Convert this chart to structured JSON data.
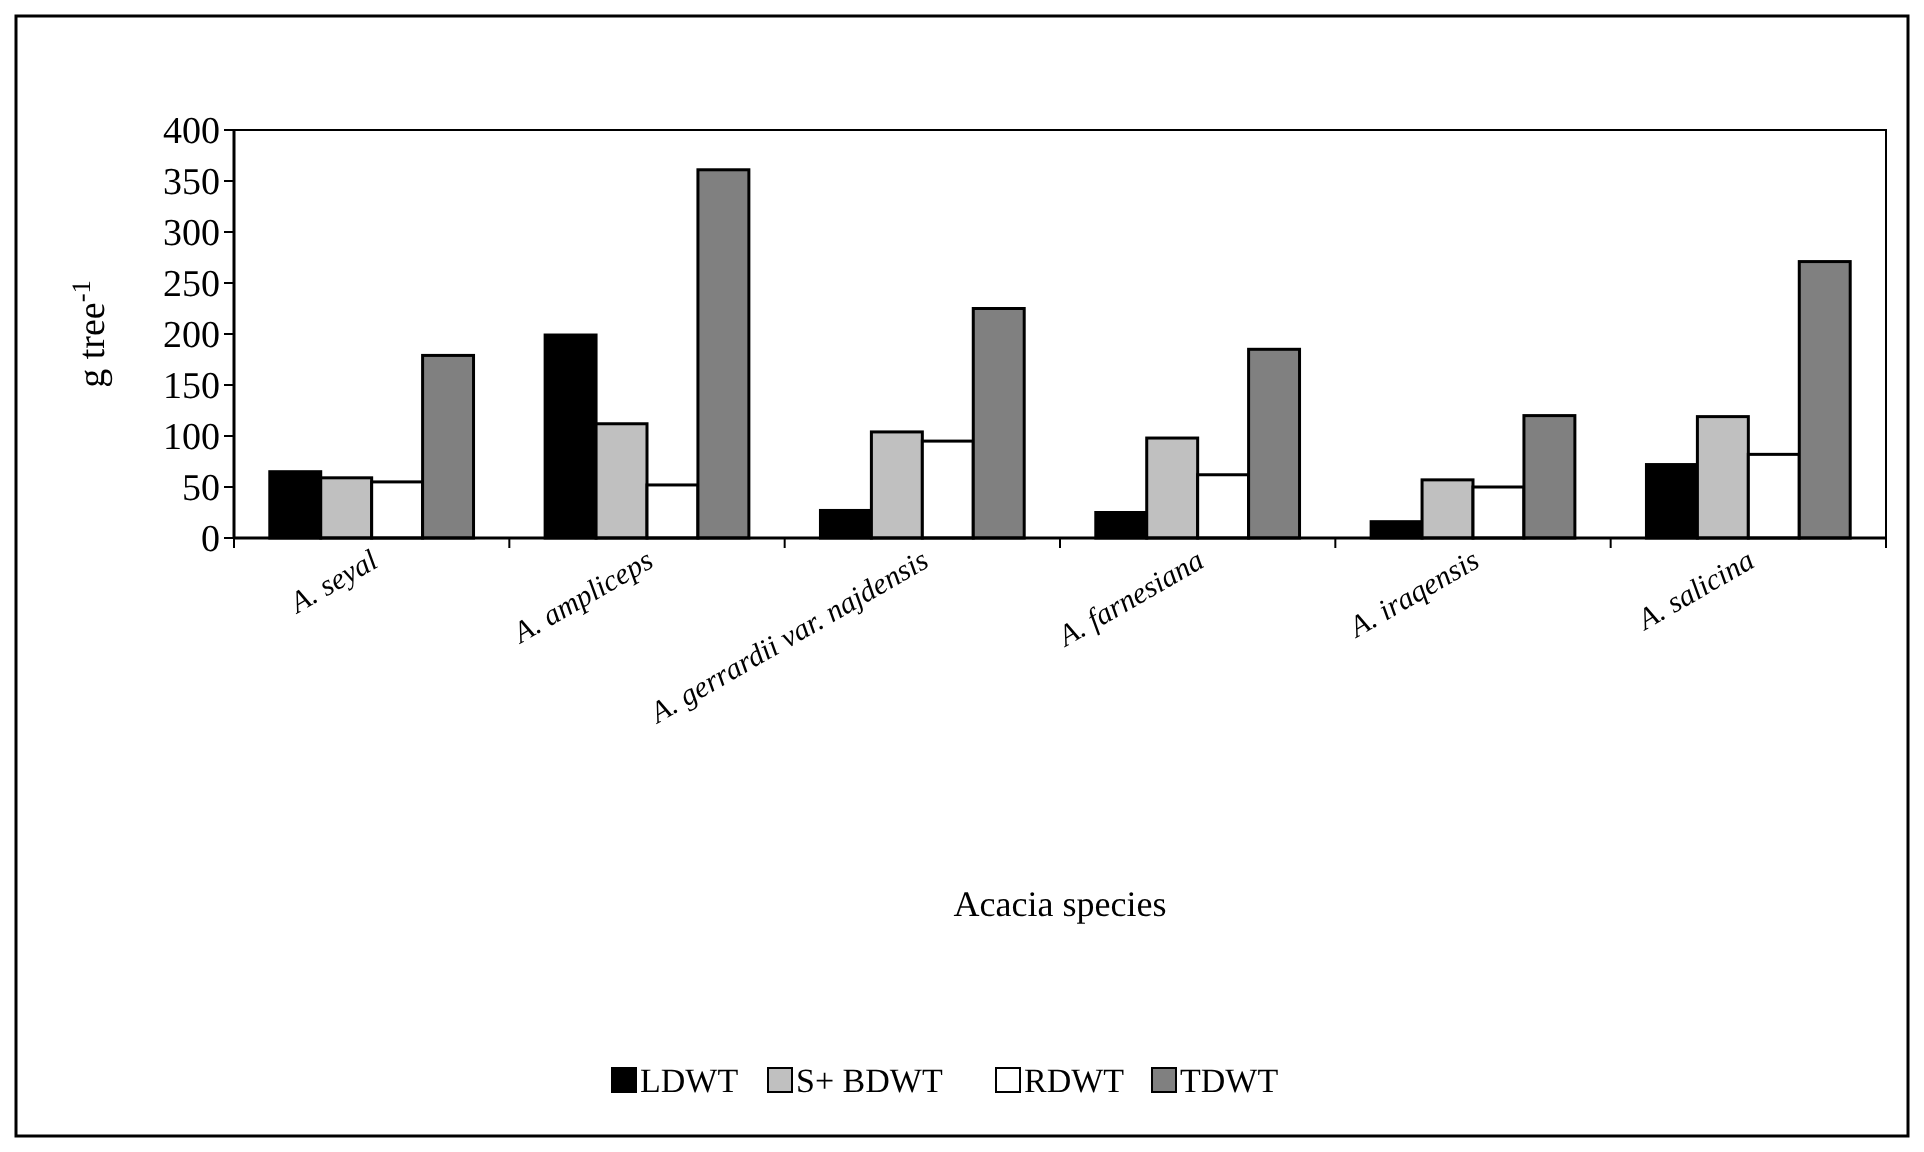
{
  "chart_data": {
    "type": "bar",
    "xlabel": "Acacia species",
    "ylabel": "g tree$^{-1}$",
    "categories": [
      "A. seyal",
      "A. ampliceps",
      "A. gerrardii var. najdensis",
      "A. farnesiana",
      "A. iraqensis",
      "A. salicina"
    ],
    "series": [
      {
        "name": "LDWT",
        "color": "#000000",
        "values": [
          65,
          199,
          27,
          25,
          16,
          72
        ]
      },
      {
        "name": "S+ BDWT",
        "color": "#c0c0c0",
        "values": [
          59,
          112,
          104,
          98,
          57,
          119
        ]
      },
      {
        "name": "RDWT",
        "color": "#ffffff",
        "values": [
          55,
          52,
          95,
          62,
          50,
          82
        ]
      },
      {
        "name": "TDWT",
        "color": "#808080",
        "values": [
          179,
          361,
          225,
          185,
          120,
          271
        ]
      }
    ],
    "ylim": [
      0,
      400
    ],
    "yticks": [
      0,
      50,
      100,
      150,
      200,
      250,
      300,
      350,
      400
    ],
    "grid": false,
    "legend": "bottom"
  }
}
